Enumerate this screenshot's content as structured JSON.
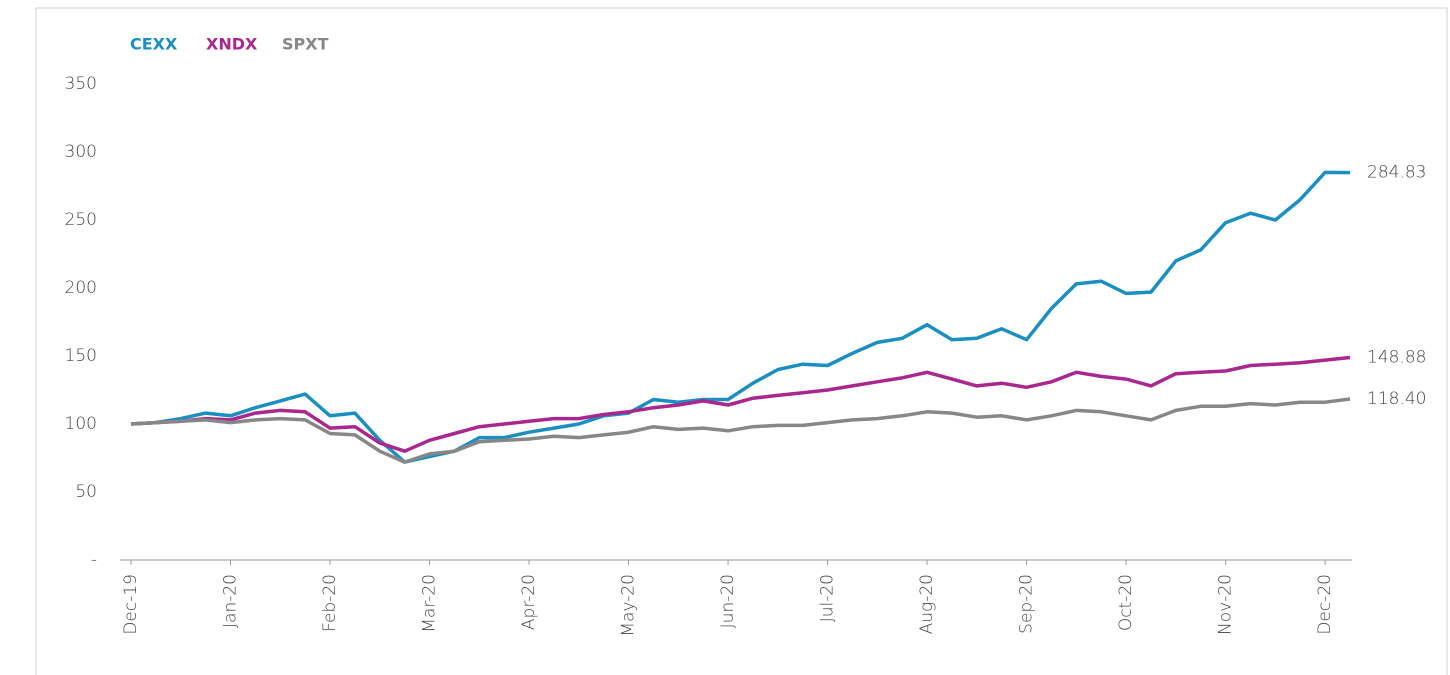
{
  "chart_data": {
    "type": "line",
    "categories": [
      "Dec-19",
      null,
      null,
      null,
      "Jan-20",
      null,
      null,
      null,
      "Feb-20",
      null,
      null,
      null,
      "Mar-20",
      null,
      null,
      null,
      "Apr-20",
      null,
      null,
      null,
      "May-20",
      null,
      null,
      null,
      "Jun-20",
      null,
      null,
      null,
      "Jul-20",
      null,
      null,
      null,
      "Aug-20",
      null,
      null,
      null,
      "Sep-20",
      null,
      null,
      null,
      "Oct-20",
      null,
      null,
      null,
      "Nov-20",
      null,
      null,
      null,
      "Dec-20",
      null
    ],
    "series": [
      {
        "name": "CEXX",
        "color": "#1a8fc0",
        "values": [
          100,
          101,
          104,
          108,
          106,
          112,
          117,
          122,
          106,
          108,
          88,
          72,
          76,
          80,
          90,
          90,
          94,
          97,
          100,
          106,
          108,
          118,
          116,
          118,
          118,
          130,
          140,
          144,
          143,
          152,
          160,
          163,
          173,
          162,
          163,
          170,
          162,
          185,
          203,
          205,
          196,
          197,
          220,
          228,
          248,
          255,
          250,
          265,
          285,
          284.83
        ],
        "value_labels": [
          null,
          null,
          null,
          null,
          null,
          null,
          null,
          null,
          null,
          null,
          null,
          null,
          null,
          null,
          null,
          null,
          null,
          null,
          null,
          null,
          null,
          null,
          null,
          null,
          null,
          null,
          null,
          null,
          null,
          null,
          null,
          null,
          null,
          null,
          null,
          null,
          null,
          null,
          null,
          null,
          null,
          null,
          null,
          null,
          null,
          null,
          null,
          null,
          null,
          "284.83"
        ]
      },
      {
        "name": "XNDX",
        "color": "#a8288f",
        "values": [
          100,
          101,
          102,
          104,
          103,
          108,
          110,
          109,
          97,
          98,
          86,
          80,
          88,
          93,
          98,
          100,
          102,
          104,
          104,
          107,
          109,
          112,
          114,
          117,
          114,
          119,
          121,
          123,
          125,
          128,
          131,
          134,
          138,
          133,
          128,
          130,
          127,
          131,
          138,
          135,
          133,
          128,
          137,
          138,
          139,
          143,
          144,
          145,
          147,
          148.88
        ],
        "value_labels": [
          null,
          null,
          null,
          null,
          null,
          null,
          null,
          null,
          null,
          null,
          null,
          null,
          null,
          null,
          null,
          null,
          null,
          null,
          null,
          null,
          null,
          null,
          null,
          null,
          null,
          null,
          null,
          null,
          null,
          null,
          null,
          null,
          null,
          null,
          null,
          null,
          null,
          null,
          null,
          null,
          null,
          null,
          null,
          null,
          null,
          null,
          null,
          null,
          null,
          "148.88"
        ]
      },
      {
        "name": "SPXT",
        "color": "#878787",
        "values": [
          100,
          101,
          102,
          103,
          101,
          103,
          104,
          103,
          93,
          92,
          80,
          72,
          78,
          80,
          87,
          88,
          89,
          91,
          90,
          92,
          94,
          98,
          96,
          97,
          95,
          98,
          99,
          99,
          101,
          103,
          104,
          106,
          109,
          108,
          105,
          106,
          103,
          106,
          110,
          109,
          106,
          103,
          110,
          113,
          113,
          115,
          114,
          116,
          116,
          118.4
        ],
        "value_labels": [
          null,
          null,
          null,
          null,
          null,
          null,
          null,
          null,
          null,
          null,
          null,
          null,
          null,
          null,
          null,
          null,
          null,
          null,
          null,
          null,
          null,
          null,
          null,
          null,
          null,
          null,
          null,
          null,
          null,
          null,
          null,
          null,
          null,
          null,
          null,
          null,
          null,
          null,
          null,
          null,
          null,
          null,
          null,
          null,
          null,
          null,
          null,
          null,
          null,
          "118.40"
        ]
      }
    ],
    "ylim": [
      0,
      350
    ],
    "yticks": [
      {
        "value": 0,
        "label": "-"
      },
      50,
      100,
      150,
      200,
      250,
      300,
      350
    ],
    "grid": false
  }
}
